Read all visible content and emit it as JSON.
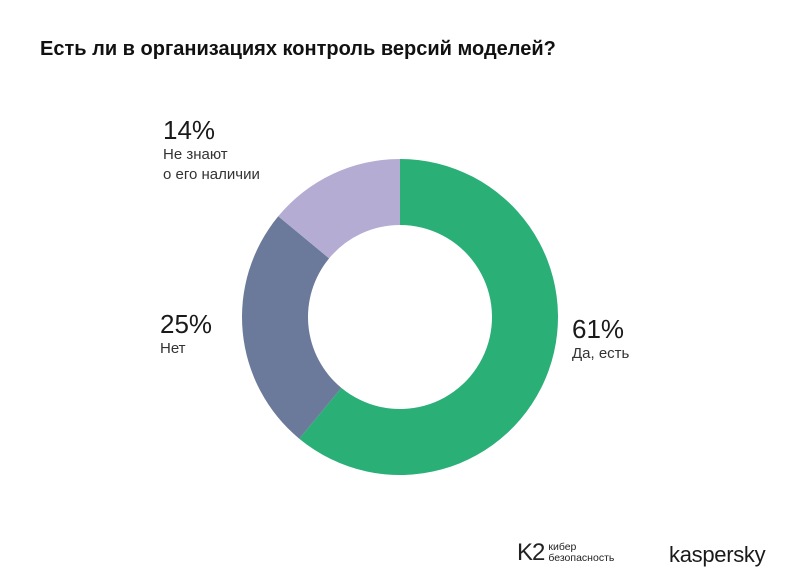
{
  "chart_data": {
    "type": "pie",
    "title": "Есть ли в организациях контроль версий моделей?",
    "donut": true,
    "series": [
      {
        "label": "Да, есть",
        "value": 61,
        "percent_label": "61%",
        "color": "#2aaf77"
      },
      {
        "label": "Нет",
        "value": 25,
        "percent_label": "25%",
        "color": "#6b7a9a"
      },
      {
        "label": "Не знают о его наличии",
        "label_lines": [
          "Не знают",
          "о его наличии"
        ],
        "value": 14,
        "percent_label": "14%",
        "color": "#b5acd4"
      }
    ]
  },
  "footer": {
    "k2_mark": "K2",
    "k2_line1": "кибер",
    "k2_line2": "безопасность",
    "kaspersky": "kaspersky"
  }
}
